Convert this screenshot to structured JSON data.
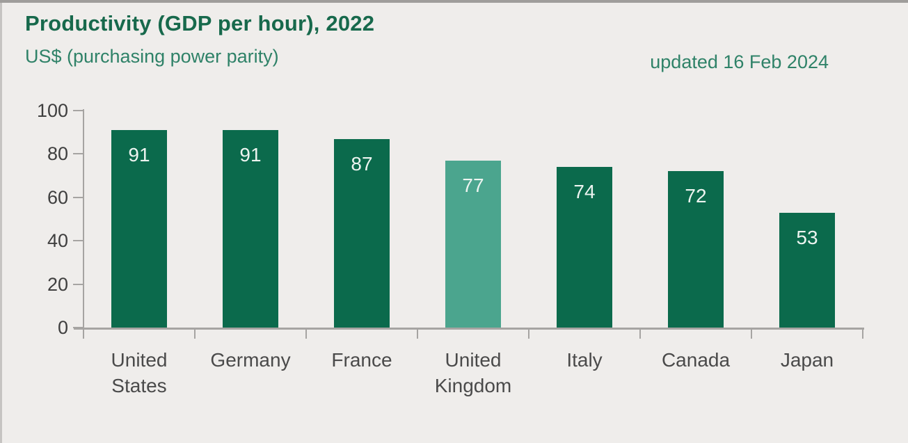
{
  "header": {
    "title": "Productivity (GDP per hour), 2022",
    "subtitle": "US$ (purchasing power parity)",
    "updated": "updated 16 Feb 2024"
  },
  "colors": {
    "background": "#efedeb",
    "bar": "#0b6a4c",
    "bar_highlight": "#4ba58e",
    "title_text": "#17694c",
    "subtitle_text": "#2f8268",
    "axis": "#a6a4a2",
    "tick_label": "#3f3f3f",
    "category_label": "#4a4a4a",
    "value_label": "#edf4f0"
  },
  "chart_data": {
    "type": "bar",
    "title": "Productivity (GDP per hour), 2022",
    "subtitle": "US$ (purchasing power parity)",
    "annotation": "updated 16 Feb 2024",
    "categories": [
      "United States",
      "Germany",
      "France",
      "United Kingdom",
      "Italy",
      "Canada",
      "Japan"
    ],
    "values": [
      91,
      91,
      87,
      77,
      74,
      72,
      53
    ],
    "highlighted_category": "United Kingdom",
    "xlabel": "",
    "ylabel": "US$ (purchasing power parity)",
    "ylim": [
      0,
      100
    ],
    "yticks": [
      0,
      20,
      40,
      60,
      80,
      100
    ],
    "grid": false,
    "legend": false,
    "value_labels_shown": true
  }
}
